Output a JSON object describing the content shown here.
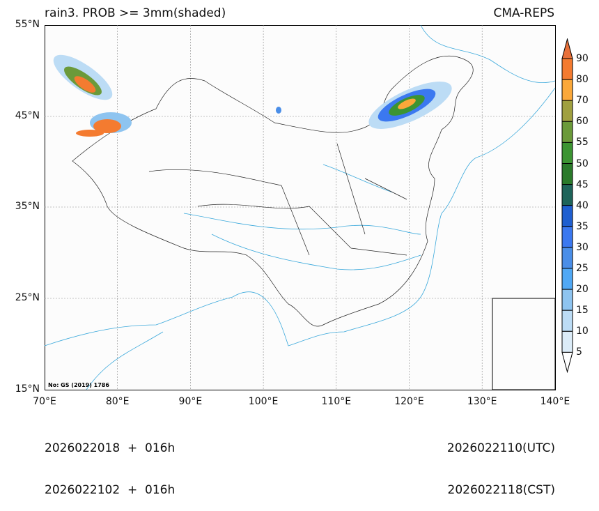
{
  "title_left": "rain3. PROB >= 3mm(shaded)",
  "title_right": "CMA-REPS",
  "lat_labels": [
    "55°N",
    "45°N",
    "35°N",
    "25°N",
    "15°N"
  ],
  "lon_labels": [
    "70°E",
    "80°E",
    "90°E",
    "100°E",
    "110°E",
    "120°E",
    "130°E",
    "140°E"
  ],
  "map_credit": "No: GS (2019) 1786",
  "footer": {
    "left1": "2026022018  +  016h",
    "left2": "2026022102  +  016h",
    "right1": "2026022110(UTC)",
    "right2": "2026022118(CST)"
  },
  "colorbar": {
    "labels": [
      "90",
      "80",
      "70",
      "60",
      "55",
      "50",
      "45",
      "40",
      "35",
      "30",
      "25",
      "20",
      "15",
      "10",
      "5"
    ],
    "colors": [
      "#f47b30",
      "#fba83a",
      "#a0a040",
      "#6b9a3a",
      "#3c9432",
      "#2a7a2a",
      "#1e645a",
      "#1f5fd0",
      "#3b78f0",
      "#4a8ee8",
      "#50a8f5",
      "#8ec4f0",
      "#bcdcf5",
      "#dcecf8"
    ],
    "over_color": "#e8703a",
    "under_color": "#ffffff"
  }
}
